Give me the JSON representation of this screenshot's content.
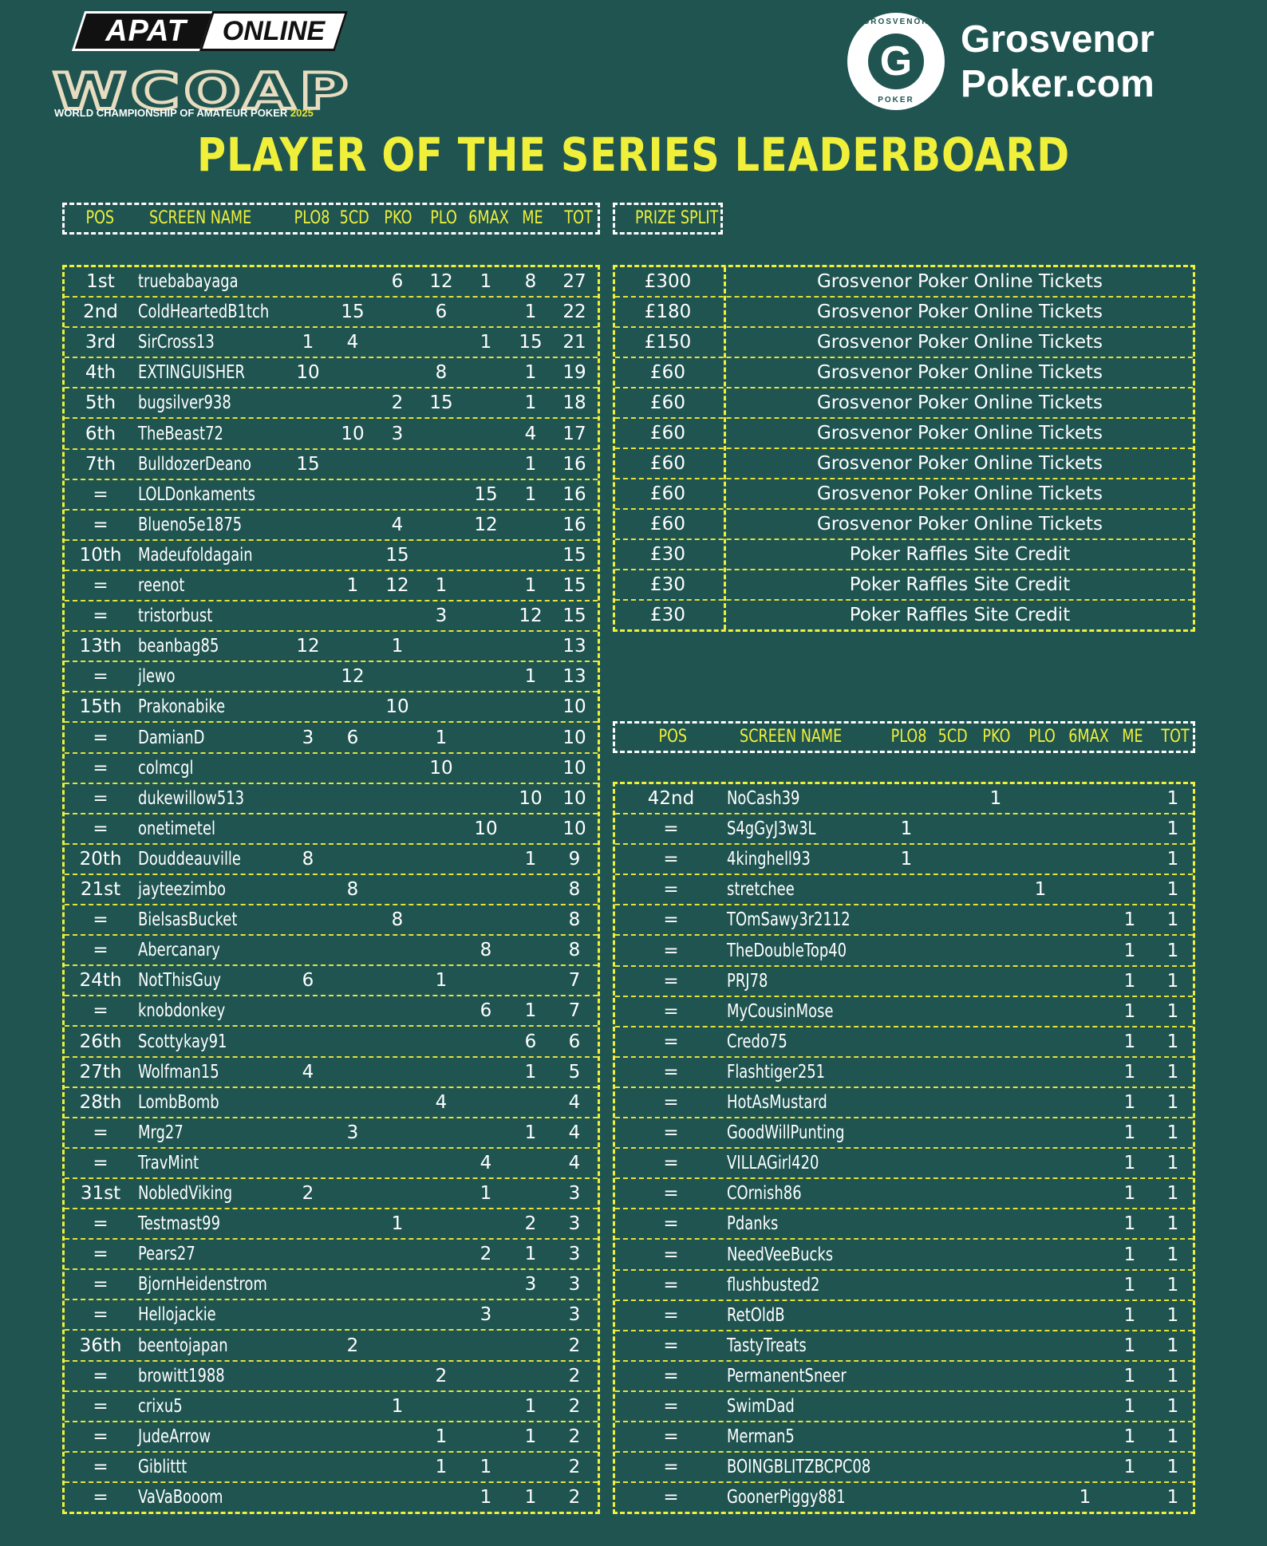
{
  "brand": {
    "apat_left": "APAT",
    "apat_right": "ONLINE",
    "wcoap": "WCOAP",
    "wcoap_sub": "WORLD CHAMPIONSHIP OF AMATEUR POKER",
    "wcoap_year": "2025",
    "grosvenor_ring_top": "GROSVENOR",
    "grosvenor_ring_bottom": "POKER",
    "grosvenor_mark": "G",
    "grosvenor_line1": "Grosvenor",
    "grosvenor_line2": "Poker.com"
  },
  "title": "PLAYER OF THE SERIES LEADERBOARD",
  "headers": {
    "pos": "POS",
    "name": "SCREEN NAME",
    "plo8": "PLO8",
    "5cd": "5CD",
    "pko": "PKO",
    "plo": "PLO",
    "6max": "6MAX",
    "me": "ME",
    "tot": "TOT",
    "prize_split": "PRIZE SPLIT"
  },
  "left_rows": [
    {
      "pos": "1st",
      "name": "truebabayaga",
      "plo8": "",
      "cd5": "",
      "pko": "6",
      "plo": "12",
      "max6": "1",
      "me": "8",
      "tot": "27"
    },
    {
      "pos": "2nd",
      "name": "ColdHeartedB1tch",
      "plo8": "",
      "cd5": "15",
      "pko": "",
      "plo": "6",
      "max6": "",
      "me": "1",
      "tot": "22"
    },
    {
      "pos": "3rd",
      "name": "SirCross13",
      "plo8": "1",
      "cd5": "4",
      "pko": "",
      "plo": "",
      "max6": "1",
      "me": "15",
      "tot": "21"
    },
    {
      "pos": "4th",
      "name": "EXTINGUISHER",
      "plo8": "10",
      "cd5": "",
      "pko": "",
      "plo": "8",
      "max6": "",
      "me": "1",
      "tot": "19"
    },
    {
      "pos": "5th",
      "name": "bugsilver938",
      "plo8": "",
      "cd5": "",
      "pko": "2",
      "plo": "15",
      "max6": "",
      "me": "1",
      "tot": "18"
    },
    {
      "pos": "6th",
      "name": "TheBeast72",
      "plo8": "",
      "cd5": "10",
      "pko": "3",
      "plo": "",
      "max6": "",
      "me": "4",
      "tot": "17"
    },
    {
      "pos": "7th",
      "name": "BulldozerDeano",
      "plo8": "15",
      "cd5": "",
      "pko": "",
      "plo": "",
      "max6": "",
      "me": "1",
      "tot": "16"
    },
    {
      "pos": "=",
      "name": "LOLDonkaments",
      "plo8": "",
      "cd5": "",
      "pko": "",
      "plo": "",
      "max6": "15",
      "me": "1",
      "tot": "16"
    },
    {
      "pos": "=",
      "name": "Blueno5e1875",
      "plo8": "",
      "cd5": "",
      "pko": "4",
      "plo": "",
      "max6": "12",
      "me": "",
      "tot": "16"
    },
    {
      "pos": "10th",
      "name": "Madeufoldagain",
      "plo8": "",
      "cd5": "",
      "pko": "15",
      "plo": "",
      "max6": "",
      "me": "",
      "tot": "15"
    },
    {
      "pos": "=",
      "name": "reenot",
      "plo8": "",
      "cd5": "1",
      "pko": "12",
      "plo": "1",
      "max6": "",
      "me": "1",
      "tot": "15"
    },
    {
      "pos": "=",
      "name": "tristorbust",
      "plo8": "",
      "cd5": "",
      "pko": "",
      "plo": "3",
      "max6": "",
      "me": "12",
      "tot": "15"
    },
    {
      "pos": "13th",
      "name": "beanbag85",
      "plo8": "12",
      "cd5": "",
      "pko": "1",
      "plo": "",
      "max6": "",
      "me": "",
      "tot": "13"
    },
    {
      "pos": "=",
      "name": "jlewo",
      "plo8": "",
      "cd5": "12",
      "pko": "",
      "plo": "",
      "max6": "",
      "me": "1",
      "tot": "13"
    },
    {
      "pos": "15th",
      "name": "Prakonabike",
      "plo8": "",
      "cd5": "",
      "pko": "10",
      "plo": "",
      "max6": "",
      "me": "",
      "tot": "10"
    },
    {
      "pos": "=",
      "name": "DamianD",
      "plo8": "3",
      "cd5": "6",
      "pko": "",
      "plo": "1",
      "max6": "",
      "me": "",
      "tot": "10"
    },
    {
      "pos": "=",
      "name": "colmcgl",
      "plo8": "",
      "cd5": "",
      "pko": "",
      "plo": "10",
      "max6": "",
      "me": "",
      "tot": "10"
    },
    {
      "pos": "=",
      "name": "dukewillow513",
      "plo8": "",
      "cd5": "",
      "pko": "",
      "plo": "",
      "max6": "",
      "me": "10",
      "tot": "10"
    },
    {
      "pos": "=",
      "name": "onetimetel",
      "plo8": "",
      "cd5": "",
      "pko": "",
      "plo": "",
      "max6": "10",
      "me": "",
      "tot": "10"
    },
    {
      "pos": "20th",
      "name": "Douddeauville",
      "plo8": "8",
      "cd5": "",
      "pko": "",
      "plo": "",
      "max6": "",
      "me": "1",
      "tot": "9"
    },
    {
      "pos": "21st",
      "name": "jayteezimbo",
      "plo8": "",
      "cd5": "8",
      "pko": "",
      "plo": "",
      "max6": "",
      "me": "",
      "tot": "8"
    },
    {
      "pos": "=",
      "name": "BielsasBucket",
      "plo8": "",
      "cd5": "",
      "pko": "8",
      "plo": "",
      "max6": "",
      "me": "",
      "tot": "8"
    },
    {
      "pos": "=",
      "name": "Abercanary",
      "plo8": "",
      "cd5": "",
      "pko": "",
      "plo": "",
      "max6": "8",
      "me": "",
      "tot": "8"
    },
    {
      "pos": "24th",
      "name": "NotThisGuy",
      "plo8": "6",
      "cd5": "",
      "pko": "",
      "plo": "1",
      "max6": "",
      "me": "",
      "tot": "7"
    },
    {
      "pos": "=",
      "name": "knobdonkey",
      "plo8": "",
      "cd5": "",
      "pko": "",
      "plo": "",
      "max6": "6",
      "me": "1",
      "tot": "7"
    },
    {
      "pos": "26th",
      "name": "Scottykay91",
      "plo8": "",
      "cd5": "",
      "pko": "",
      "plo": "",
      "max6": "",
      "me": "6",
      "tot": "6"
    },
    {
      "pos": "27th",
      "name": "Wolfman15",
      "plo8": "4",
      "cd5": "",
      "pko": "",
      "plo": "",
      "max6": "",
      "me": "1",
      "tot": "5"
    },
    {
      "pos": "28th",
      "name": "LombBomb",
      "plo8": "",
      "cd5": "",
      "pko": "",
      "plo": "4",
      "max6": "",
      "me": "",
      "tot": "4"
    },
    {
      "pos": "=",
      "name": "Mrg27",
      "plo8": "",
      "cd5": "3",
      "pko": "",
      "plo": "",
      "max6": "",
      "me": "1",
      "tot": "4"
    },
    {
      "pos": "=",
      "name": "TravMint",
      "plo8": "",
      "cd5": "",
      "pko": "",
      "plo": "",
      "max6": "4",
      "me": "",
      "tot": "4"
    },
    {
      "pos": "31st",
      "name": "NobledViking",
      "plo8": "2",
      "cd5": "",
      "pko": "",
      "plo": "",
      "max6": "1",
      "me": "",
      "tot": "3"
    },
    {
      "pos": "=",
      "name": "Testmast99",
      "plo8": "",
      "cd5": "",
      "pko": "1",
      "plo": "",
      "max6": "",
      "me": "2",
      "tot": "3"
    },
    {
      "pos": "=",
      "name": "Pears27",
      "plo8": "",
      "cd5": "",
      "pko": "",
      "plo": "",
      "max6": "2",
      "me": "1",
      "tot": "3"
    },
    {
      "pos": "=",
      "name": "BjornHeidenstrom",
      "plo8": "",
      "cd5": "",
      "pko": "",
      "plo": "",
      "max6": "",
      "me": "3",
      "tot": "3"
    },
    {
      "pos": "=",
      "name": "Hellojackie",
      "plo8": "",
      "cd5": "",
      "pko": "",
      "plo": "",
      "max6": "3",
      "me": "",
      "tot": "3"
    },
    {
      "pos": "36th",
      "name": "beentojapan",
      "plo8": "",
      "cd5": "2",
      "pko": "",
      "plo": "",
      "max6": "",
      "me": "",
      "tot": "2"
    },
    {
      "pos": "=",
      "name": "browitt1988",
      "plo8": "",
      "cd5": "",
      "pko": "",
      "plo": "2",
      "max6": "",
      "me": "",
      "tot": "2"
    },
    {
      "pos": "=",
      "name": "crixu5",
      "plo8": "",
      "cd5": "",
      "pko": "1",
      "plo": "",
      "max6": "",
      "me": "1",
      "tot": "2"
    },
    {
      "pos": "=",
      "name": "JudeArrow",
      "plo8": "",
      "cd5": "",
      "pko": "",
      "plo": "1",
      "max6": "",
      "me": "1",
      "tot": "2"
    },
    {
      "pos": "=",
      "name": "Giblittt",
      "plo8": "",
      "cd5": "",
      "pko": "",
      "plo": "1",
      "max6": "1",
      "me": "",
      "tot": "2"
    },
    {
      "pos": "=",
      "name": "VaVaBooom",
      "plo8": "",
      "cd5": "",
      "pko": "",
      "plo": "",
      "max6": "1",
      "me": "1",
      "tot": "2"
    }
  ],
  "prize_rows": [
    {
      "amount": "£300",
      "desc": "Grosvenor Poker Online Tickets"
    },
    {
      "amount": "£180",
      "desc": "Grosvenor Poker Online Tickets"
    },
    {
      "amount": "£150",
      "desc": "Grosvenor Poker Online Tickets"
    },
    {
      "amount": "£60",
      "desc": "Grosvenor Poker Online Tickets"
    },
    {
      "amount": "£60",
      "desc": "Grosvenor Poker Online Tickets"
    },
    {
      "amount": "£60",
      "desc": "Grosvenor Poker Online Tickets"
    },
    {
      "amount": "£60",
      "desc": "Grosvenor Poker Online Tickets"
    },
    {
      "amount": "£60",
      "desc": "Grosvenor Poker Online Tickets"
    },
    {
      "amount": "£60",
      "desc": "Grosvenor Poker Online Tickets"
    },
    {
      "amount": "£30",
      "desc": "Poker Raffles Site Credit"
    },
    {
      "amount": "£30",
      "desc": "Poker Raffles Site Credit"
    },
    {
      "amount": "£30",
      "desc": "Poker Raffles Site Credit"
    }
  ],
  "right_rows": [
    {
      "pos": "42nd",
      "name": "NoCash39",
      "plo8": "",
      "cd5": "",
      "pko": "1",
      "plo": "",
      "max6": "",
      "me": "",
      "tot": "1"
    },
    {
      "pos": "=",
      "name": "S4gGyJ3w3L",
      "plo8": "1",
      "cd5": "",
      "pko": "",
      "plo": "",
      "max6": "",
      "me": "",
      "tot": "1"
    },
    {
      "pos": "=",
      "name": "4kinghell93",
      "plo8": "1",
      "cd5": "",
      "pko": "",
      "plo": "",
      "max6": "",
      "me": "",
      "tot": "1"
    },
    {
      "pos": "=",
      "name": "stretchee",
      "plo8": "",
      "cd5": "",
      "pko": "",
      "plo": "1",
      "max6": "",
      "me": "",
      "tot": "1"
    },
    {
      "pos": "=",
      "name": "TOmSawy3r2112",
      "plo8": "",
      "cd5": "",
      "pko": "",
      "plo": "",
      "max6": "",
      "me": "1",
      "tot": "1"
    },
    {
      "pos": "=",
      "name": "TheDoubleTop40",
      "plo8": "",
      "cd5": "",
      "pko": "",
      "plo": "",
      "max6": "",
      "me": "1",
      "tot": "1"
    },
    {
      "pos": "=",
      "name": "PRJ78",
      "plo8": "",
      "cd5": "",
      "pko": "",
      "plo": "",
      "max6": "",
      "me": "1",
      "tot": "1"
    },
    {
      "pos": "=",
      "name": "MyCousinMose",
      "plo8": "",
      "cd5": "",
      "pko": "",
      "plo": "",
      "max6": "",
      "me": "1",
      "tot": "1"
    },
    {
      "pos": "=",
      "name": "Credo75",
      "plo8": "",
      "cd5": "",
      "pko": "",
      "plo": "",
      "max6": "",
      "me": "1",
      "tot": "1"
    },
    {
      "pos": "=",
      "name": "Flashtiger251",
      "plo8": "",
      "cd5": "",
      "pko": "",
      "plo": "",
      "max6": "",
      "me": "1",
      "tot": "1"
    },
    {
      "pos": "=",
      "name": "HotAsMustard",
      "plo8": "",
      "cd5": "",
      "pko": "",
      "plo": "",
      "max6": "",
      "me": "1",
      "tot": "1"
    },
    {
      "pos": "=",
      "name": "GoodWillPunting",
      "plo8": "",
      "cd5": "",
      "pko": "",
      "plo": "",
      "max6": "",
      "me": "1",
      "tot": "1"
    },
    {
      "pos": "=",
      "name": "VILLAGirl420",
      "plo8": "",
      "cd5": "",
      "pko": "",
      "plo": "",
      "max6": "",
      "me": "1",
      "tot": "1"
    },
    {
      "pos": "=",
      "name": "COrnish86",
      "plo8": "",
      "cd5": "",
      "pko": "",
      "plo": "",
      "max6": "",
      "me": "1",
      "tot": "1"
    },
    {
      "pos": "=",
      "name": "Pdanks",
      "plo8": "",
      "cd5": "",
      "pko": "",
      "plo": "",
      "max6": "",
      "me": "1",
      "tot": "1"
    },
    {
      "pos": "=",
      "name": "NeedVeeBucks",
      "plo8": "",
      "cd5": "",
      "pko": "",
      "plo": "",
      "max6": "",
      "me": "1",
      "tot": "1"
    },
    {
      "pos": "=",
      "name": "flushbusted2",
      "plo8": "",
      "cd5": "",
      "pko": "",
      "plo": "",
      "max6": "",
      "me": "1",
      "tot": "1"
    },
    {
      "pos": "=",
      "name": "RetOldB",
      "plo8": "",
      "cd5": "",
      "pko": "",
      "plo": "",
      "max6": "",
      "me": "1",
      "tot": "1"
    },
    {
      "pos": "=",
      "name": "TastyTreats",
      "plo8": "",
      "cd5": "",
      "pko": "",
      "plo": "",
      "max6": "",
      "me": "1",
      "tot": "1"
    },
    {
      "pos": "=",
      "name": "PermanentSneer",
      "plo8": "",
      "cd5": "",
      "pko": "",
      "plo": "",
      "max6": "",
      "me": "1",
      "tot": "1"
    },
    {
      "pos": "=",
      "name": "SwimDad",
      "plo8": "",
      "cd5": "",
      "pko": "",
      "plo": "",
      "max6": "",
      "me": "1",
      "tot": "1"
    },
    {
      "pos": "=",
      "name": "Merman5",
      "plo8": "",
      "cd5": "",
      "pko": "",
      "plo": "",
      "max6": "",
      "me": "1",
      "tot": "1"
    },
    {
      "pos": "=",
      "name": "BOINGBLITZBCPC08",
      "plo8": "",
      "cd5": "",
      "pko": "",
      "plo": "",
      "max6": "",
      "me": "1",
      "tot": "1"
    },
    {
      "pos": "=",
      "name": "GoonerPiggy881",
      "plo8": "",
      "cd5": "",
      "pko": "",
      "plo": "",
      "max6": "1",
      "me": "",
      "tot": "1"
    }
  ],
  "colors": {
    "background": "#1f5451",
    "accent_yellow": "#f0f03a",
    "text": "#ffffff"
  }
}
